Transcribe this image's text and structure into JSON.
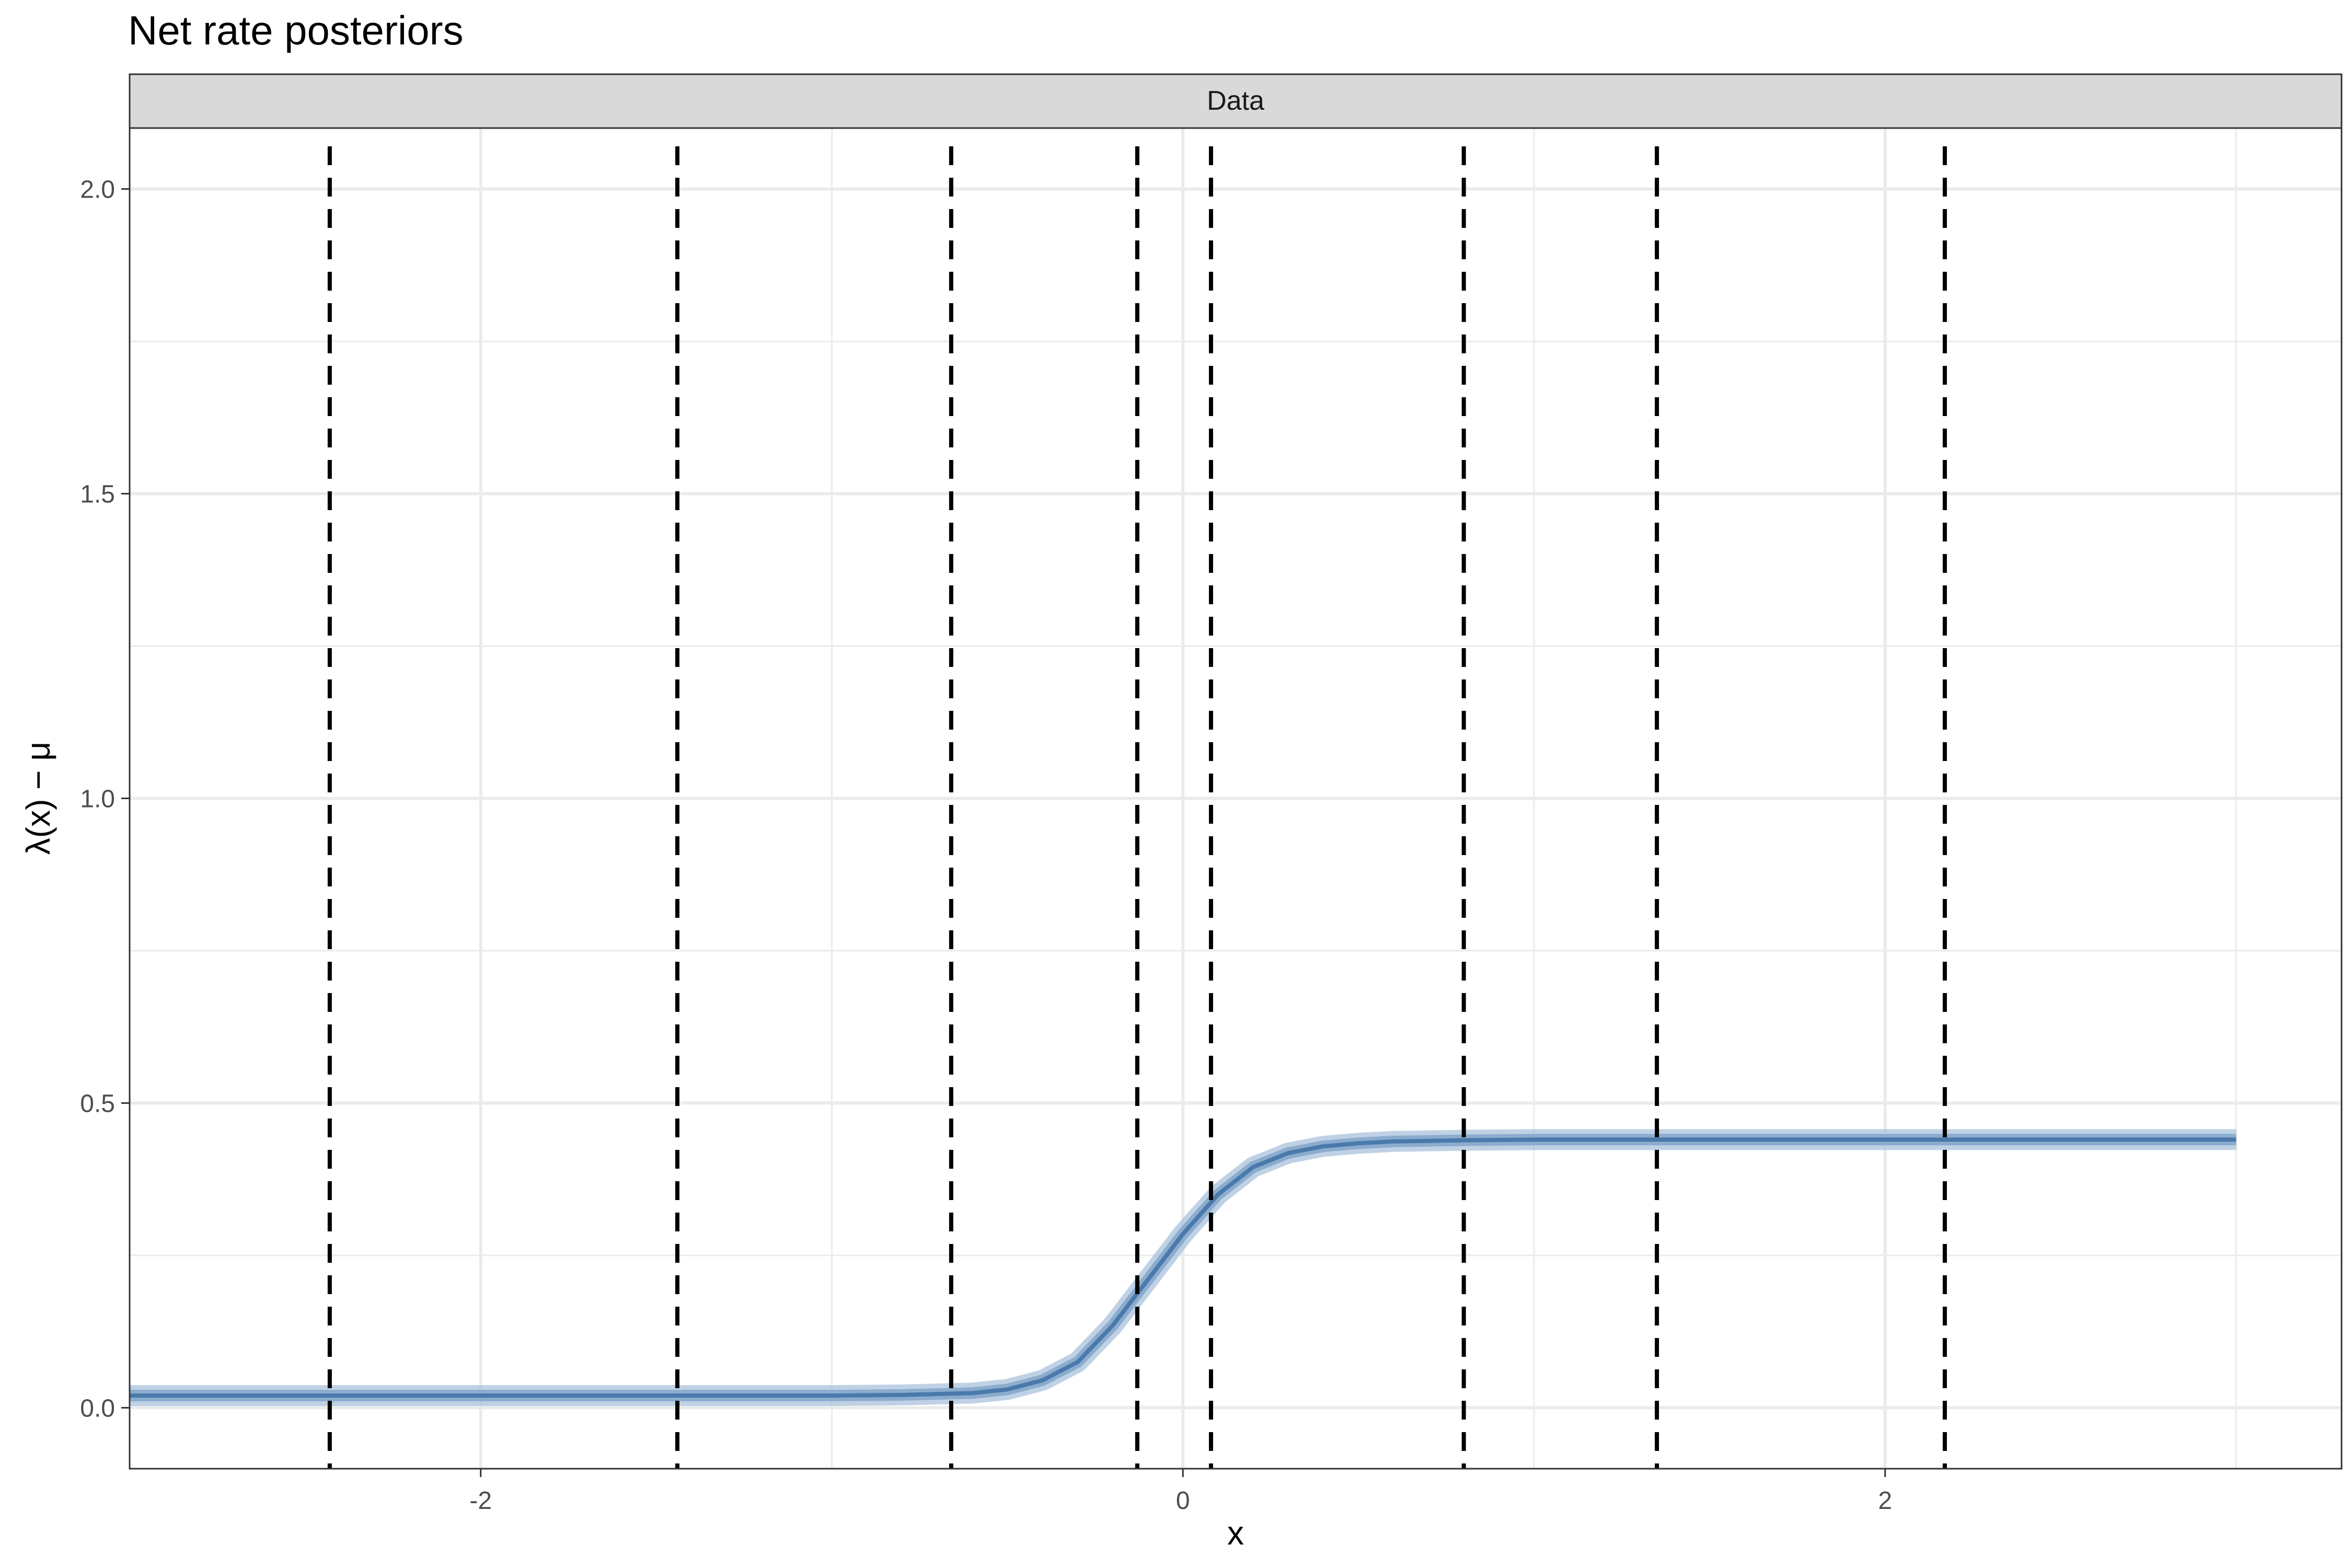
{
  "chart_data": {
    "type": "line",
    "title": "Net rate posteriors",
    "facet_label": "Data",
    "xlabel": "x",
    "ylabel": "λ(x) − μ",
    "xlim": [
      -3.0,
      3.3
    ],
    "ylim": [
      -0.1,
      2.1
    ],
    "x_ticks": [
      -2,
      0,
      2
    ],
    "x_tick_labels": [
      "-2",
      "0",
      "2"
    ],
    "y_ticks": [
      0.0,
      0.5,
      1.0,
      1.5,
      2.0
    ],
    "y_tick_labels": [
      "0.0",
      "0.5",
      "1.0",
      "1.5",
      "2.0"
    ],
    "grid": true,
    "series": [
      {
        "x": [
          -3.0,
          -2.5,
          -2.0,
          -1.5,
          -1.0,
          -0.8,
          -0.6,
          -0.5,
          -0.4,
          -0.3,
          -0.2,
          -0.1,
          0.0,
          0.1,
          0.2,
          0.3,
          0.4,
          0.5,
          0.6,
          0.8,
          1.0,
          1.5,
          2.0,
          2.5,
          3.0
        ],
        "y": [
          0.02,
          0.02,
          0.02,
          0.02,
          0.02,
          0.021,
          0.024,
          0.03,
          0.045,
          0.075,
          0.135,
          0.21,
          0.285,
          0.35,
          0.395,
          0.418,
          0.429,
          0.434,
          0.437,
          0.439,
          0.44,
          0.44,
          0.44,
          0.44,
          0.44
        ]
      }
    ],
    "vlines_x": [
      -2.43,
      -1.44,
      -0.66,
      -0.13,
      0.08,
      0.8,
      1.35,
      2.17
    ],
    "colors": {
      "line": "#4a7aab",
      "band": "#a9c1db",
      "vline": "#000000",
      "strip": "#d9d9d9",
      "grid": "#ebebeb"
    }
  }
}
